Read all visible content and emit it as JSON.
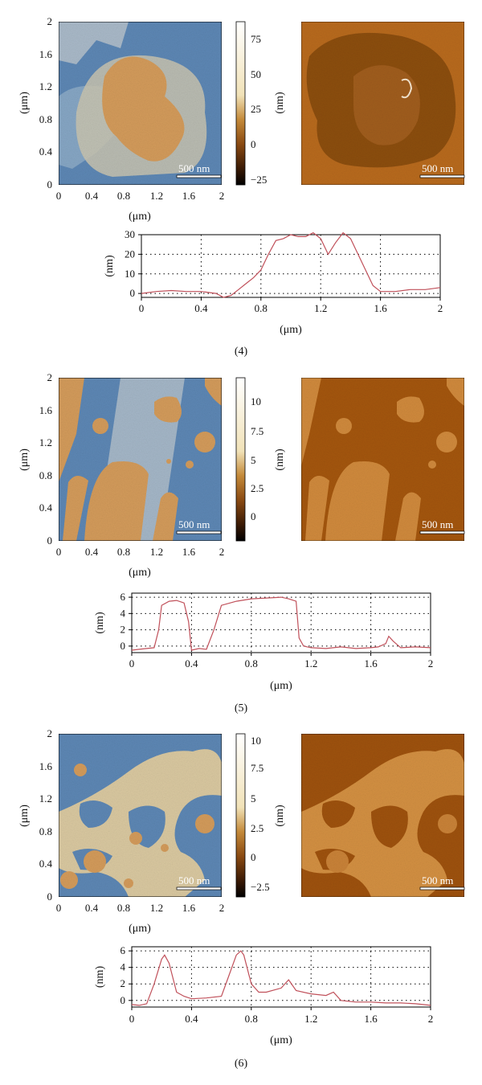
{
  "panels": [
    {
      "label": "(4)",
      "image_axis": {
        "ticks_y": [
          "2",
          "1.6",
          "1.2",
          "0.8",
          "0.4",
          "0"
        ],
        "ticks_x": [
          "0",
          "0.4",
          "0.8",
          "1.2",
          "1.6",
          "2"
        ],
        "ylabel": "(μm)",
        "xlabel": "(μm)"
      },
      "scalebar_topo": "500 nm",
      "scalebar_phase": "500 nm",
      "colorbar": {
        "ticks": [
          "75",
          "50",
          "25",
          "0",
          "−25"
        ],
        "unit": "(nm)"
      },
      "colors": {
        "topo_bg": "#5d87b4",
        "topo_feature": "#d39b5b",
        "phase_bg": "#b86a1f",
        "phase_feature": "#8c4e12"
      }
    },
    {
      "label": "(5)",
      "image_axis": {
        "ticks_y": [
          "2",
          "1.6",
          "1.2",
          "0.8",
          "0.4",
          "0"
        ],
        "ticks_x": [
          "0",
          "0.4",
          "0.8",
          "1.2",
          "1.6",
          "2"
        ],
        "ylabel": "(μm)",
        "xlabel": "(μm)"
      },
      "scalebar_topo": "500 nm",
      "scalebar_phase": "500 nm",
      "colorbar": {
        "ticks": [
          "10",
          "7.5",
          "5",
          "2.5",
          "0"
        ],
        "unit": "(nm)"
      },
      "colors": {
        "topo_bg": "#5d87b4",
        "topo_feature": "#d39b5b",
        "phase_bg": "#a4560f",
        "phase_feature": "#d08a3c"
      }
    },
    {
      "label": "(6)",
      "image_axis": {
        "ticks_y": [
          "2",
          "1.6",
          "1.2",
          "0.8",
          "0.4",
          "0"
        ],
        "ticks_x": [
          "0",
          "0.4",
          "0.8",
          "1.2",
          "1.6",
          "2"
        ],
        "ylabel": "(μm)",
        "xlabel": "(μm)"
      },
      "scalebar_topo": "500 nm",
      "scalebar_phase": "500 nm",
      "colorbar": {
        "ticks": [
          "10",
          "7.5",
          "5",
          "2.5",
          "0",
          "−2.5"
        ],
        "unit": "(nm)"
      },
      "colors": {
        "topo_bg": "#5d87b4",
        "topo_feature": "#d39b5b",
        "phase_bg": "#9e520f",
        "phase_feature": "#d39042"
      }
    }
  ],
  "chart_data": [
    {
      "type": "line",
      "xlabel": "(μm)",
      "ylabel": "(nm)",
      "xlim": [
        0,
        2
      ],
      "ylim": [
        -2,
        30
      ],
      "xticks": [
        "0",
        "0.4",
        "0.8",
        "1.2",
        "1.6",
        "2"
      ],
      "yticks": [
        "30",
        "20",
        "10",
        "0"
      ],
      "grid": true,
      "line_color": "#c0505a",
      "x": [
        0,
        0.1,
        0.2,
        0.3,
        0.4,
        0.5,
        0.55,
        0.6,
        0.65,
        0.7,
        0.75,
        0.8,
        0.85,
        0.9,
        0.95,
        1.0,
        1.05,
        1.1,
        1.15,
        1.2,
        1.25,
        1.3,
        1.35,
        1.4,
        1.45,
        1.5,
        1.55,
        1.6,
        1.7,
        1.8,
        1.9,
        2.0
      ],
      "y": [
        0,
        1,
        1.5,
        1,
        1,
        0,
        -2,
        -1,
        2,
        5,
        8,
        12,
        20,
        27,
        28,
        30,
        29,
        29,
        31,
        28,
        20,
        26,
        31,
        28,
        20,
        12,
        4,
        1,
        1,
        2,
        2,
        3
      ]
    },
    {
      "type": "line",
      "xlabel": "(μm)",
      "ylabel": "(nm)",
      "xlim": [
        0,
        2
      ],
      "ylim": [
        -0.8,
        6.5
      ],
      "xticks": [
        "0",
        "0.4",
        "0.8",
        "1.2",
        "1.6",
        "2"
      ],
      "yticks": [
        "6",
        "4",
        "2",
        "0"
      ],
      "grid": true,
      "line_color": "#c0505a",
      "x": [
        0,
        0.05,
        0.1,
        0.15,
        0.18,
        0.2,
        0.25,
        0.3,
        0.35,
        0.38,
        0.4,
        0.45,
        0.5,
        0.55,
        0.6,
        0.7,
        0.8,
        0.9,
        1.0,
        1.05,
        1.1,
        1.12,
        1.15,
        1.2,
        1.3,
        1.4,
        1.5,
        1.6,
        1.65,
        1.7,
        1.72,
        1.75,
        1.8,
        1.9,
        2.0
      ],
      "y": [
        -0.5,
        -0.4,
        -0.3,
        -0.2,
        2,
        5,
        5.5,
        5.6,
        5.3,
        3,
        -0.5,
        -0.3,
        -0.4,
        2,
        5,
        5.5,
        5.8,
        5.9,
        6,
        5.8,
        5.5,
        1,
        0,
        -0.2,
        -0.3,
        -0.1,
        -0.3,
        -0.2,
        -0.1,
        0.3,
        1.2,
        0.6,
        -0.2,
        -0.1,
        -0.2
      ]
    },
    {
      "type": "line",
      "xlabel": "(μm)",
      "ylabel": "(nm)",
      "xlim": [
        0,
        2
      ],
      "ylim": [
        -0.8,
        6.5
      ],
      "xticks": [
        "0",
        "0.4",
        "0.8",
        "1.2",
        "1.6",
        "2"
      ],
      "yticks": [
        "6",
        "4",
        "2",
        "0"
      ],
      "grid": true,
      "line_color": "#c0505a",
      "x": [
        0,
        0.05,
        0.1,
        0.15,
        0.2,
        0.22,
        0.25,
        0.3,
        0.35,
        0.4,
        0.5,
        0.6,
        0.65,
        0.7,
        0.73,
        0.75,
        0.8,
        0.85,
        0.9,
        1.0,
        1.05,
        1.1,
        1.2,
        1.3,
        1.35,
        1.4,
        1.5,
        1.6,
        1.7,
        1.8,
        1.9,
        2.0
      ],
      "y": [
        -0.5,
        -0.6,
        -0.4,
        2,
        5,
        5.5,
        4.5,
        1,
        0.5,
        0.2,
        0.3,
        0.5,
        3,
        5.5,
        6,
        5.5,
        2,
        1,
        1,
        1.5,
        2.5,
        1.2,
        0.8,
        0.6,
        1,
        0,
        -0.2,
        -0.2,
        -0.3,
        -0.3,
        -0.4,
        -0.6
      ]
    }
  ]
}
